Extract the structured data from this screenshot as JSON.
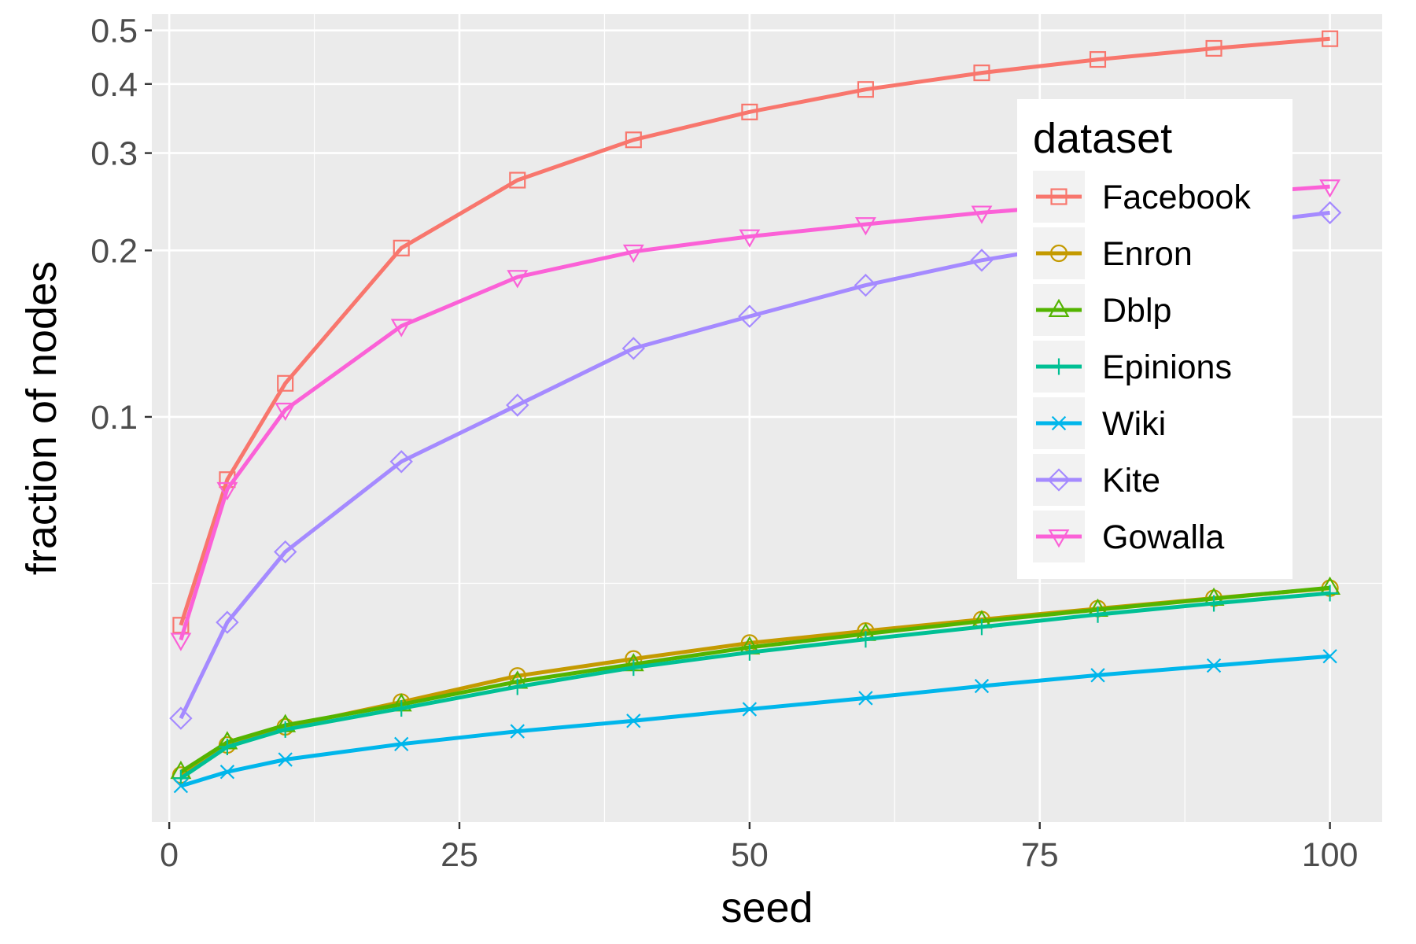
{
  "chart_data": {
    "type": "line",
    "xlabel": "seed",
    "ylabel": "fraction of nodes",
    "xlim": [
      -1.5,
      104.5
    ],
    "ylim": [
      0.0185,
      0.535
    ],
    "yscale": "log",
    "x_ticks": [
      0,
      25,
      50,
      75,
      100
    ],
    "x_tick_labels": [
      "0",
      "25",
      "50",
      "75",
      "100"
    ],
    "y_ticks": [
      0.1,
      0.2,
      0.3,
      0.4,
      0.5
    ],
    "y_tick_labels": [
      "0.1",
      "0.2",
      "0.3",
      "0.4",
      "0.5"
    ],
    "y_minor_ticks": [
      0.05
    ],
    "x_minor_ticks": [
      12.5,
      37.5,
      62.5,
      87.5
    ],
    "grid": true,
    "legend": {
      "title": "dataset",
      "position": "top-right-inside",
      "entries": [
        "Facebook",
        "Enron",
        "Dblp",
        "Epinions",
        "Wiki",
        "Kite",
        "Gowalla"
      ]
    },
    "x": [
      1,
      5,
      10,
      20,
      30,
      40,
      50,
      60,
      70,
      80,
      90,
      100
    ],
    "series": [
      {
        "name": "Facebook",
        "color": "#F8766D",
        "marker": "square",
        "values": [
          0.042,
          0.077,
          0.115,
          0.202,
          0.268,
          0.317,
          0.356,
          0.391,
          0.419,
          0.443,
          0.464,
          0.483
        ]
      },
      {
        "name": "Enron",
        "color": "#C49A00",
        "marker": "circle",
        "values": [
          0.0225,
          0.0255,
          0.0275,
          0.0305,
          0.034,
          0.0365,
          0.039,
          0.041,
          0.043,
          0.045,
          0.047,
          0.049
        ]
      },
      {
        "name": "Dblp",
        "color": "#53B400",
        "marker": "triangle-up",
        "values": [
          0.0228,
          0.0258,
          0.0277,
          0.0302,
          0.0332,
          0.0357,
          0.0383,
          0.0405,
          0.0427,
          0.0448,
          0.0469,
          0.0491
        ]
      },
      {
        "name": "Epinions",
        "color": "#00C094",
        "marker": "plus",
        "values": [
          0.0222,
          0.0253,
          0.0272,
          0.0297,
          0.0325,
          0.0352,
          0.0375,
          0.0396,
          0.0417,
          0.0439,
          0.046,
          0.048
        ]
      },
      {
        "name": "Wiki",
        "color": "#00B6EB",
        "marker": "cross",
        "values": [
          0.0215,
          0.0228,
          0.024,
          0.0256,
          0.027,
          0.0282,
          0.0296,
          0.031,
          0.0326,
          0.0341,
          0.0355,
          0.0369
        ]
      },
      {
        "name": "Kite",
        "color": "#A58AFF",
        "marker": "diamond",
        "values": [
          0.0285,
          0.0425,
          0.057,
          0.083,
          0.105,
          0.133,
          0.152,
          0.173,
          0.192,
          0.208,
          0.221,
          0.234
        ]
      },
      {
        "name": "Gowalla",
        "color": "#FB61D7",
        "marker": "triangle-down",
        "values": [
          0.0395,
          0.074,
          0.103,
          0.146,
          0.179,
          0.199,
          0.212,
          0.223,
          0.234,
          0.243,
          0.252,
          0.261
        ]
      }
    ]
  }
}
